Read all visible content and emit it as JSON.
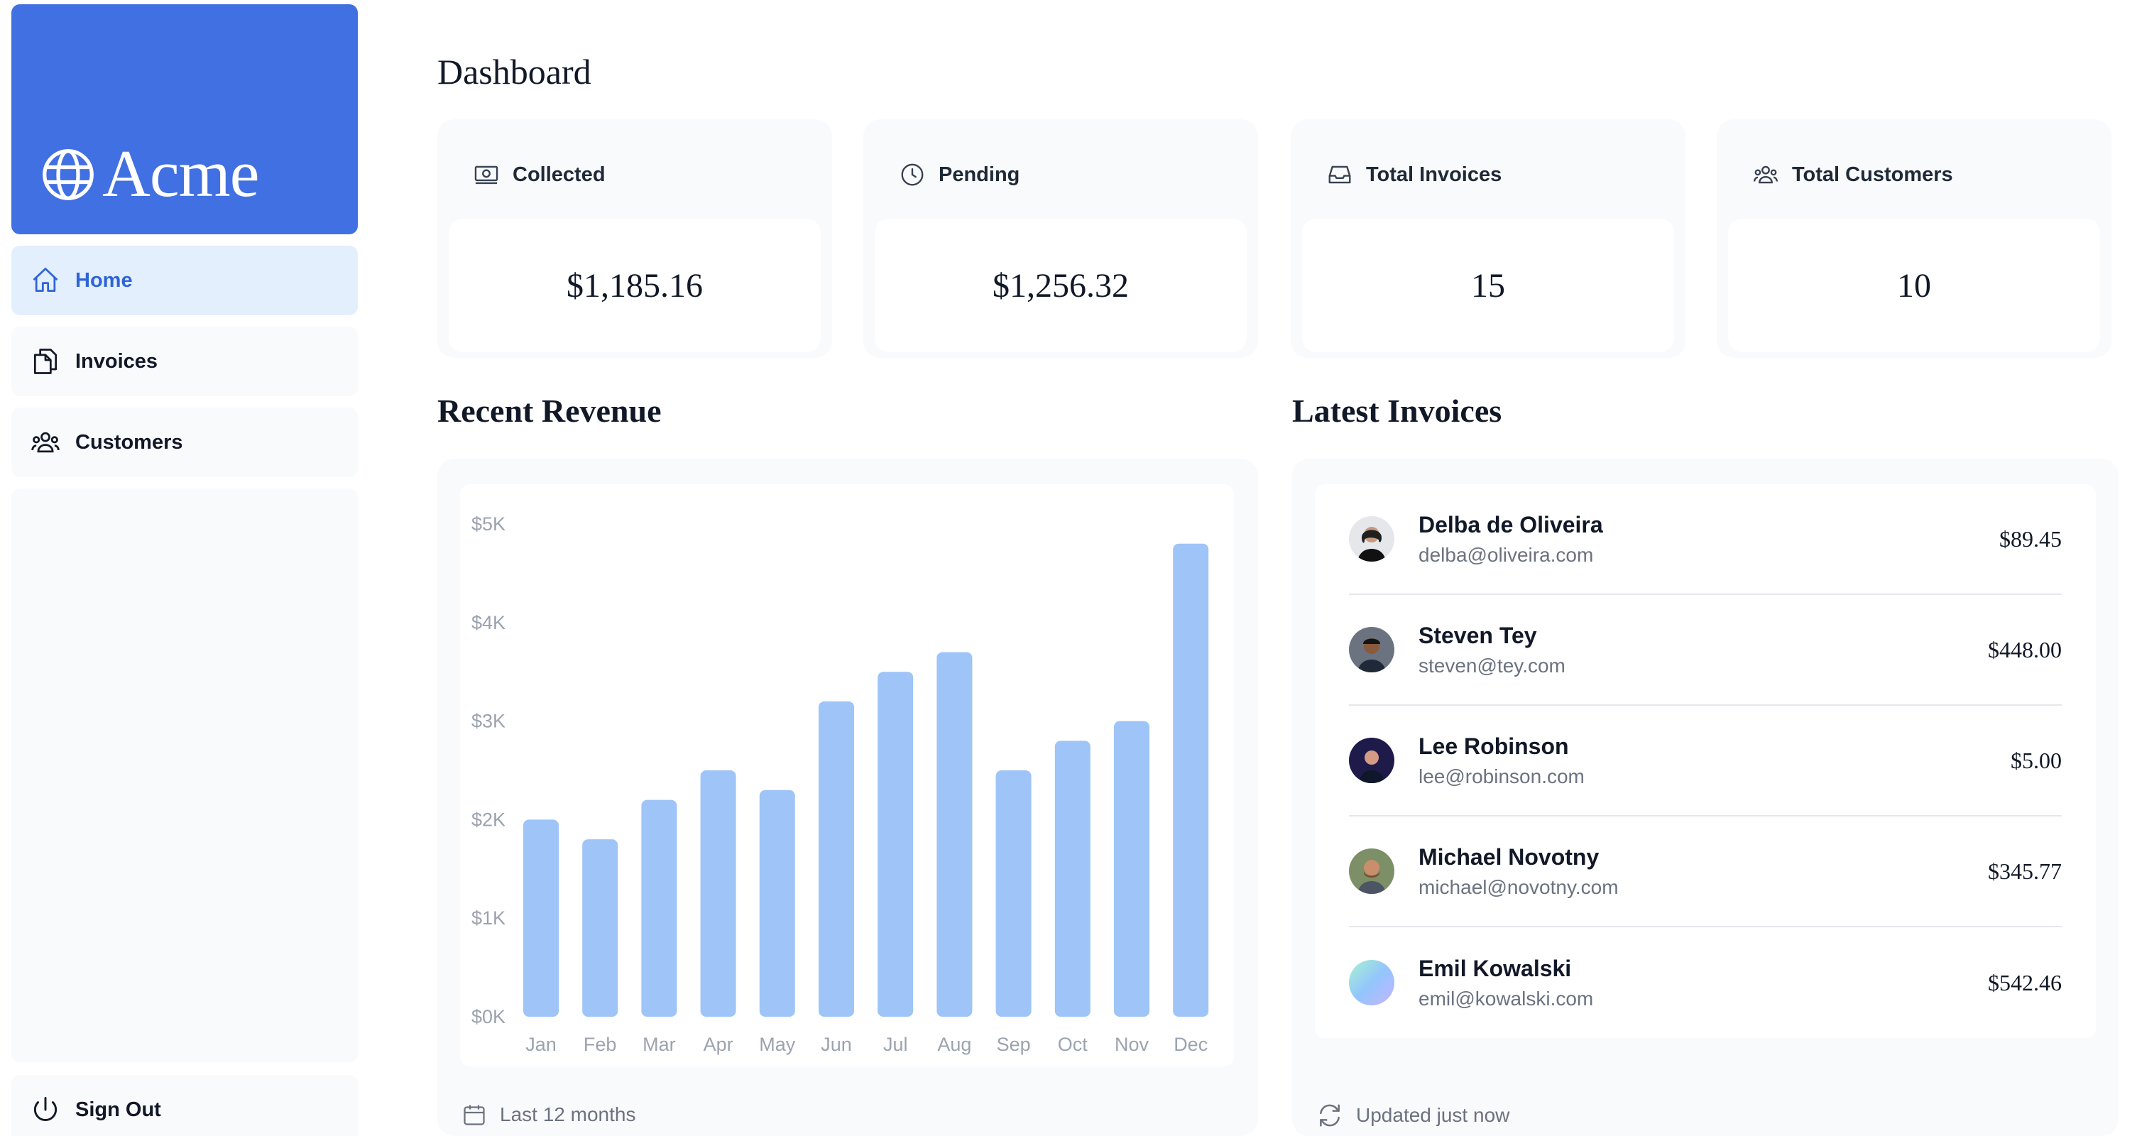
{
  "app": {
    "logo_text": "Acme",
    "accent_color": "#4170e2"
  },
  "sidebar": {
    "items": [
      {
        "label": "Home",
        "icon": "home-icon",
        "active": true
      },
      {
        "label": "Invoices",
        "icon": "document-icon",
        "active": false
      },
      {
        "label": "Customers",
        "icon": "users-icon",
        "active": false
      }
    ],
    "sign_out_label": "Sign Out"
  },
  "dashboard": {
    "title": "Dashboard",
    "cards": [
      {
        "title": "Collected",
        "icon": "banknotes-icon",
        "value": "$1,185.16"
      },
      {
        "title": "Pending",
        "icon": "clock-icon",
        "value": "$1,256.32"
      },
      {
        "title": "Total Invoices",
        "icon": "inbox-icon",
        "value": "15"
      },
      {
        "title": "Total Customers",
        "icon": "user-group-icon",
        "value": "10"
      }
    ]
  },
  "revenue": {
    "title": "Recent Revenue",
    "footer": "Last 12 months"
  },
  "chart_data": {
    "type": "bar",
    "title": "Recent Revenue",
    "categories": [
      "Jan",
      "Feb",
      "Mar",
      "Apr",
      "May",
      "Jun",
      "Jul",
      "Aug",
      "Sep",
      "Oct",
      "Nov",
      "Dec"
    ],
    "values": [
      2000,
      1800,
      2200,
      2500,
      2300,
      3200,
      3500,
      3700,
      2500,
      2800,
      3000,
      4800
    ],
    "y_ticks": [
      "$0K",
      "$1K",
      "$2K",
      "$3K",
      "$4K",
      "$5K"
    ],
    "ylim": [
      0,
      5000
    ],
    "xlabel": "",
    "ylabel": "",
    "bar_color": "#9ec4f8",
    "grid": false
  },
  "invoices": {
    "title": "Latest Invoices",
    "footer": "Updated just now",
    "rows": [
      {
        "name": "Delba de Oliveira",
        "email": "delba@oliveira.com",
        "amount": "$89.45",
        "avatar_color": "#d1d5db"
      },
      {
        "name": "Steven Tey",
        "email": "steven@tey.com",
        "amount": "$448.00",
        "avatar_color": "#4b5563"
      },
      {
        "name": "Lee Robinson",
        "email": "lee@robinson.com",
        "amount": "$5.00",
        "avatar_color": "#1e1b4b"
      },
      {
        "name": "Michael Novotny",
        "email": "michael@novotny.com",
        "amount": "$345.77",
        "avatar_color": "#6b7d5a"
      },
      {
        "name": "Emil Kowalski",
        "email": "emil@kowalski.com",
        "amount": "$542.46",
        "avatar_color": "#a5c8f5"
      }
    ]
  }
}
